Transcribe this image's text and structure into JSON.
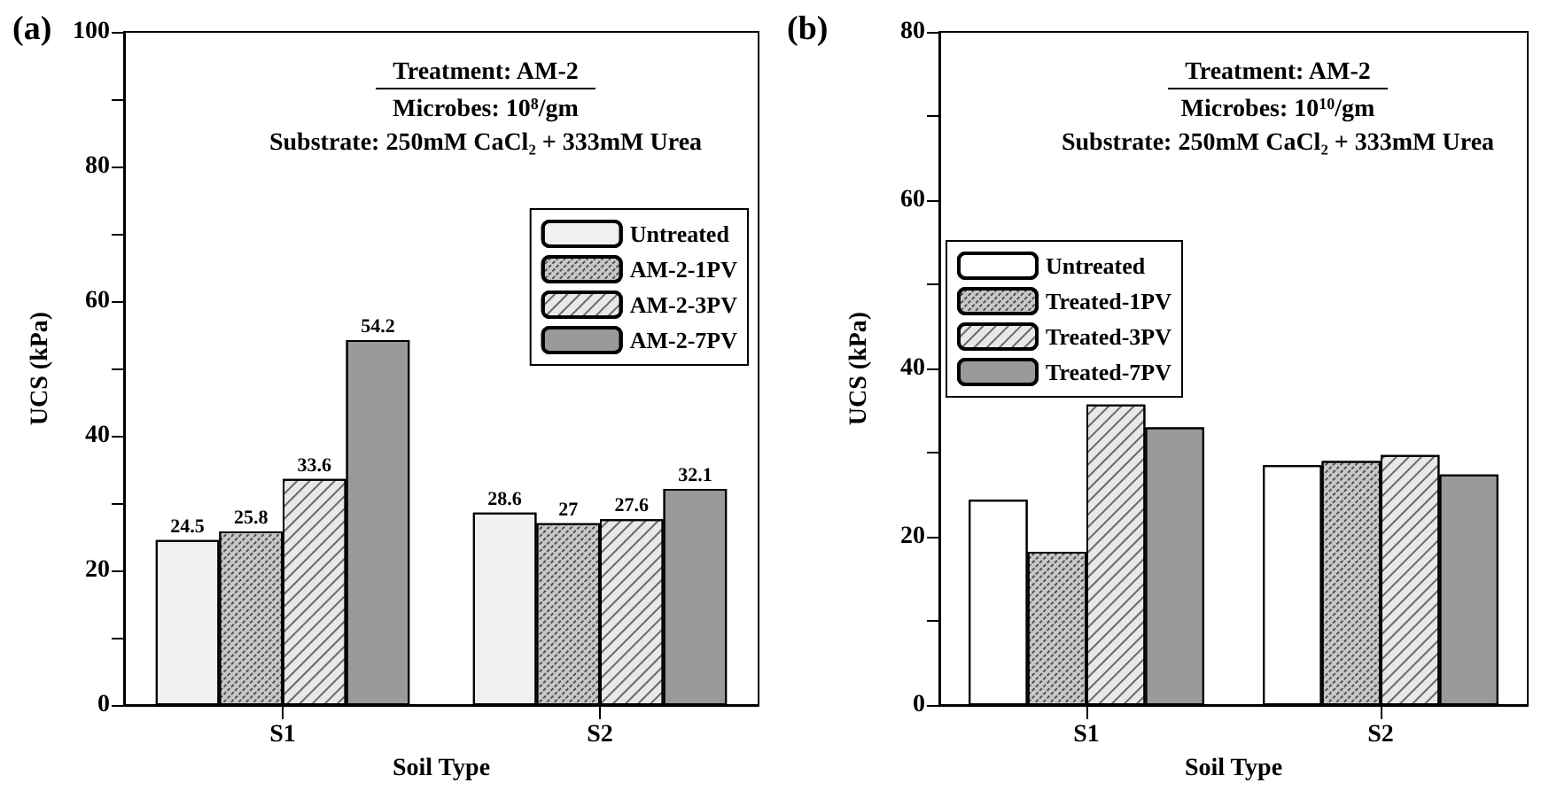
{
  "chart_data": [
    {
      "type": "bar",
      "title": "(a)",
      "annotations": [
        "Treatment: AM-2",
        "Microbes: 10$^{8}$/gm",
        "Substrate: 250mM CaCl₂ + 333mM Urea"
      ],
      "xlabel": "Soil Type",
      "ylabel": "UCS (kPa)",
      "categories": [
        "S1",
        "S2"
      ],
      "series": [
        {
          "name": "Untreated",
          "color": "#f0f0f0",
          "values": [
            24.5,
            28.6
          ]
        },
        {
          "name": "AM-2-1PV",
          "color": "#c8c8c8",
          "values": [
            25.8,
            27
          ]
        },
        {
          "name": "AM-2-3PV",
          "color": "#e8e8e8",
          "values": [
            33.6,
            27.6
          ]
        },
        {
          "name": "AM-2-7PV",
          "color": "#9a9a9a",
          "values": [
            54.2,
            32.1
          ]
        }
      ],
      "ylim": [
        0,
        100
      ],
      "yticks": [
        0,
        {
          "value": 10,
          "label": null
        },
        20,
        {
          "value": 30,
          "label": null
        },
        40,
        {
          "value": 50,
          "label": null
        },
        60,
        {
          "value": 70,
          "label": null
        },
        80,
        {
          "value": 90,
          "label": null
        },
        100
      ],
      "data_labels": true,
      "legend": "top right",
      "grid": false
    },
    {
      "type": "bar",
      "title": "(b)",
      "annotations": [
        "Treatment: AM-2",
        "Microbes: 10$^{10}$/gm",
        "Substrate: 250mM CaCl₂ + 333mM Urea"
      ],
      "xlabel": "Soil Type",
      "ylabel": "UCS (kPa)",
      "categories": [
        "S1",
        "S2"
      ],
      "series": [
        {
          "name": "Untreated",
          "color": "#ffffff",
          "values": [
            24.4,
            28.5
          ]
        },
        {
          "name": "Treated-1PV",
          "color": "#c8c8c8",
          "values": [
            18.2,
            29.0
          ]
        },
        {
          "name": "Treated-3PV",
          "color": "#e8e8e8",
          "values": [
            35.7,
            29.7
          ]
        },
        {
          "name": "Treated-7PV",
          "color": "#9a9a9a",
          "values": [
            33.0,
            27.4
          ]
        }
      ],
      "ylim": [
        0,
        80
      ],
      "yticks": [
        0,
        {
          "value": 10,
          "label": null
        },
        20,
        {
          "value": 30,
          "label": null
        },
        40,
        {
          "value": 50,
          "label": null
        },
        60,
        {
          "value": 70,
          "label": null
        },
        80
      ],
      "legend": "top left",
      "grid": false
    }
  ]
}
